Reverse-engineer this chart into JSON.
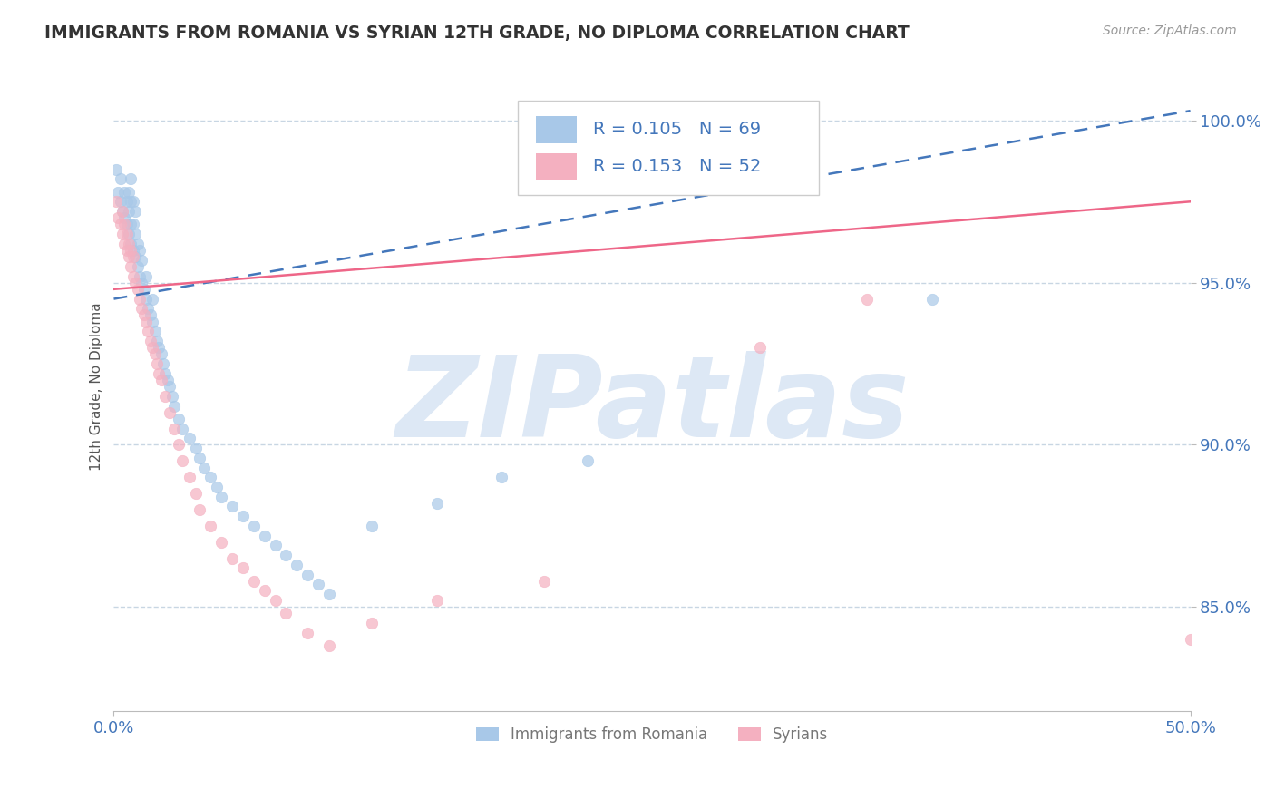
{
  "title": "IMMIGRANTS FROM ROMANIA VS SYRIAN 12TH GRADE, NO DIPLOMA CORRELATION CHART",
  "source": "Source: ZipAtlas.com",
  "ylabel": "12th Grade, No Diploma",
  "legend_label1": "Immigrants from Romania",
  "legend_label2": "Syrians",
  "R1": 0.105,
  "N1": 69,
  "R2": 0.153,
  "N2": 52,
  "xlim": [
    0.0,
    0.5
  ],
  "ylim": [
    0.818,
    1.018
  ],
  "xtick_labels": [
    "0.0%",
    "50.0%"
  ],
  "ytick_labels": [
    "85.0%",
    "90.0%",
    "95.0%",
    "100.0%"
  ],
  "ytick_vals": [
    0.85,
    0.9,
    0.95,
    1.0
  ],
  "color_romania": "#A8C8E8",
  "color_syria": "#F4B0C0",
  "color_trendline1": "#4477BB",
  "color_trendline2": "#EE6688",
  "watermark_text": "ZIPatlas",
  "watermark_color": "#DDE8F5",
  "trendline1_y0": 0.945,
  "trendline1_y1": 1.003,
  "trendline2_y0": 0.948,
  "trendline2_y1": 0.975,
  "romania_x": [
    0.001,
    0.002,
    0.003,
    0.003,
    0.004,
    0.005,
    0.005,
    0.006,
    0.006,
    0.007,
    0.007,
    0.007,
    0.008,
    0.008,
    0.008,
    0.008,
    0.009,
    0.009,
    0.009,
    0.01,
    0.01,
    0.01,
    0.011,
    0.011,
    0.012,
    0.012,
    0.013,
    0.013,
    0.014,
    0.015,
    0.015,
    0.016,
    0.017,
    0.018,
    0.018,
    0.019,
    0.02,
    0.021,
    0.022,
    0.023,
    0.024,
    0.025,
    0.026,
    0.027,
    0.028,
    0.03,
    0.032,
    0.035,
    0.038,
    0.04,
    0.042,
    0.045,
    0.048,
    0.05,
    0.055,
    0.06,
    0.065,
    0.07,
    0.075,
    0.08,
    0.085,
    0.09,
    0.095,
    0.1,
    0.12,
    0.15,
    0.18,
    0.22,
    0.38
  ],
  "romania_y": [
    0.985,
    0.978,
    0.975,
    0.982,
    0.972,
    0.97,
    0.978,
    0.968,
    0.975,
    0.965,
    0.972,
    0.978,
    0.962,
    0.968,
    0.975,
    0.982,
    0.96,
    0.968,
    0.975,
    0.958,
    0.965,
    0.972,
    0.955,
    0.962,
    0.952,
    0.96,
    0.95,
    0.957,
    0.948,
    0.945,
    0.952,
    0.942,
    0.94,
    0.938,
    0.945,
    0.935,
    0.932,
    0.93,
    0.928,
    0.925,
    0.922,
    0.92,
    0.918,
    0.915,
    0.912,
    0.908,
    0.905,
    0.902,
    0.899,
    0.896,
    0.893,
    0.89,
    0.887,
    0.884,
    0.881,
    0.878,
    0.875,
    0.872,
    0.869,
    0.866,
    0.863,
    0.86,
    0.857,
    0.854,
    0.875,
    0.882,
    0.89,
    0.895,
    0.945
  ],
  "syria_x": [
    0.001,
    0.002,
    0.003,
    0.004,
    0.004,
    0.005,
    0.005,
    0.006,
    0.006,
    0.007,
    0.007,
    0.008,
    0.008,
    0.009,
    0.009,
    0.01,
    0.011,
    0.012,
    0.013,
    0.014,
    0.015,
    0.016,
    0.017,
    0.018,
    0.019,
    0.02,
    0.021,
    0.022,
    0.024,
    0.026,
    0.028,
    0.03,
    0.032,
    0.035,
    0.038,
    0.04,
    0.045,
    0.05,
    0.055,
    0.06,
    0.065,
    0.07,
    0.075,
    0.08,
    0.09,
    0.1,
    0.12,
    0.15,
    0.2,
    0.3,
    0.35,
    0.5
  ],
  "syria_y": [
    0.975,
    0.97,
    0.968,
    0.965,
    0.972,
    0.962,
    0.968,
    0.96,
    0.965,
    0.958,
    0.962,
    0.955,
    0.96,
    0.952,
    0.958,
    0.95,
    0.948,
    0.945,
    0.942,
    0.94,
    0.938,
    0.935,
    0.932,
    0.93,
    0.928,
    0.925,
    0.922,
    0.92,
    0.915,
    0.91,
    0.905,
    0.9,
    0.895,
    0.89,
    0.885,
    0.88,
    0.875,
    0.87,
    0.865,
    0.862,
    0.858,
    0.855,
    0.852,
    0.848,
    0.842,
    0.838,
    0.845,
    0.852,
    0.858,
    0.93,
    0.945,
    0.84
  ]
}
